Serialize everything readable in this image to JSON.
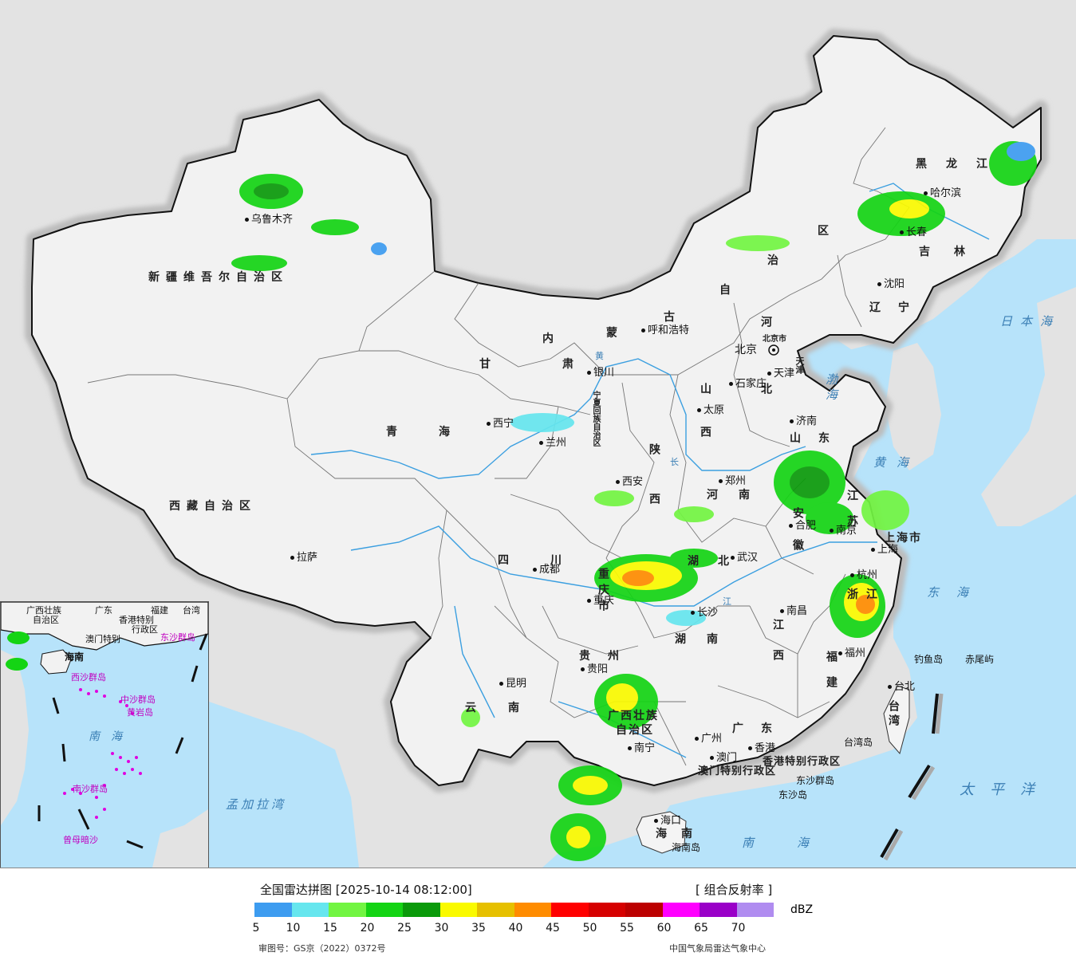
{
  "legend": {
    "title": "全国雷达拼图 [2025-10-14 08:12:00]",
    "product": "[ 组合反射率 ]",
    "unit": "dBZ",
    "colors": [
      "#3d9cf0",
      "#66e6ee",
      "#72f542",
      "#14d414",
      "#0a9a0a",
      "#fafa00",
      "#e6c000",
      "#ff8c00",
      "#ff0000",
      "#d60000",
      "#bc0000",
      "#ff00ff",
      "#9a00c8",
      "#b08cf0"
    ],
    "ticks": [
      "5",
      "10",
      "15",
      "20",
      "25",
      "30",
      "35",
      "40",
      "45",
      "50",
      "55",
      "60",
      "65",
      "70"
    ],
    "approval": "审图号：GS京（2022）0372号",
    "source": "中国气象局雷达气象中心"
  },
  "provinces": [
    {
      "id": "xinjiang",
      "label": "新疆维吾尔自治区"
    },
    {
      "id": "xizang",
      "label": "西藏自治区"
    },
    {
      "id": "qinghai",
      "label": "青海"
    },
    {
      "id": "gansu",
      "label": "甘肃"
    },
    {
      "id": "sichuan",
      "label": "四川"
    },
    {
      "id": "yunnan",
      "label": "云南"
    },
    {
      "id": "guizhou",
      "label": "贵州"
    },
    {
      "id": "guangxi1",
      "label": "广西壮族"
    },
    {
      "id": "guangxi2",
      "label": "自治区"
    },
    {
      "id": "guangdong",
      "label": "广东"
    },
    {
      "id": "hainan",
      "label": "海南"
    },
    {
      "id": "hunan",
      "label": "湖南"
    },
    {
      "id": "hubei",
      "label": "湖北"
    },
    {
      "id": "jiangxi",
      "label": "江西"
    },
    {
      "id": "fujian",
      "label": "福建"
    },
    {
      "id": "zhejiang",
      "label": "浙江"
    },
    {
      "id": "anhui",
      "label": "安徽"
    },
    {
      "id": "jiangsu",
      "label": "江苏"
    },
    {
      "id": "shandong",
      "label": "山东"
    },
    {
      "id": "henan",
      "label": "河南"
    },
    {
      "id": "shaanxi",
      "label": "陕西"
    },
    {
      "id": "shanxi",
      "label": "山西"
    },
    {
      "id": "hebei",
      "label": "河北"
    },
    {
      "id": "chongqing",
      "label": "重庆市"
    },
    {
      "id": "shanghai",
      "label": "上海市"
    },
    {
      "id": "liaoning",
      "label": "辽宁"
    },
    {
      "id": "jilin",
      "label": "吉林"
    },
    {
      "id": "heilongjiang",
      "label": "黑龙江"
    },
    {
      "id": "taiwan",
      "label": "台湾"
    },
    {
      "id": "hk",
      "label": "香港特别行政区"
    },
    {
      "id": "macau",
      "label": "澳门特别行政区"
    },
    {
      "id": "ningxia",
      "label": "宁夏回族自治区"
    },
    {
      "id": "tianjin",
      "label": "天津"
    },
    {
      "id": "beijing",
      "label": "北京市"
    }
  ],
  "nm": {
    "c1": "内",
    "c2": "蒙",
    "c3": "古",
    "c4": "自",
    "c5": "治",
    "c6": "区"
  },
  "cities": [
    {
      "id": "urumqi",
      "label": "乌鲁木齐"
    },
    {
      "id": "lhasa",
      "label": "拉萨"
    },
    {
      "id": "xining",
      "label": "西宁"
    },
    {
      "id": "lanzhou",
      "label": "兰州"
    },
    {
      "id": "yinchuan",
      "label": "银川"
    },
    {
      "id": "chengdu",
      "label": "成都"
    },
    {
      "id": "chongqingc",
      "label": "重庆"
    },
    {
      "id": "kunming",
      "label": "昆明"
    },
    {
      "id": "guiyang",
      "label": "贵阳"
    },
    {
      "id": "nanning",
      "label": "南宁"
    },
    {
      "id": "guangzhou",
      "label": "广州"
    },
    {
      "id": "haikou",
      "label": "海口"
    },
    {
      "id": "changsha",
      "label": "长沙"
    },
    {
      "id": "wuhan",
      "label": "武汉"
    },
    {
      "id": "nanchang",
      "label": "南昌"
    },
    {
      "id": "fuzhou",
      "label": "福州"
    },
    {
      "id": "hangzhou",
      "label": "杭州"
    },
    {
      "id": "hefei",
      "label": "合肥"
    },
    {
      "id": "nanjing",
      "label": "南京"
    },
    {
      "id": "shanghaic",
      "label": "上海"
    },
    {
      "id": "jinan",
      "label": "济南"
    },
    {
      "id": "zhengzhou",
      "label": "郑州"
    },
    {
      "id": "xian",
      "label": "西安"
    },
    {
      "id": "taiyuan",
      "label": "太原"
    },
    {
      "id": "shijiazhuang",
      "label": "石家庄"
    },
    {
      "id": "hohhot",
      "label": "呼和浩特"
    },
    {
      "id": "shenyang",
      "label": "沈阳"
    },
    {
      "id": "changchun",
      "label": "长春"
    },
    {
      "id": "harbin",
      "label": "哈尔滨"
    },
    {
      "id": "taibei",
      "label": "台北"
    },
    {
      "id": "xianggang",
      "label": "香港"
    },
    {
      "id": "aomen",
      "label": "澳门"
    },
    {
      "id": "tianjinc",
      "label": "天津"
    }
  ],
  "beijing": "北京",
  "seas": [
    {
      "id": "rbh",
      "label": "日本海"
    },
    {
      "id": "bh",
      "label": "渤海"
    },
    {
      "id": "hh",
      "label": "黄海"
    },
    {
      "id": "dh",
      "label": "东海"
    },
    {
      "id": "tpy",
      "label": "太平洋"
    },
    {
      "id": "nh",
      "label": "南海"
    },
    {
      "id": "mjlw",
      "label": "孟加拉湾"
    },
    {
      "id": "insetnh",
      "label": "南海"
    }
  ],
  "islands": [
    {
      "id": "dyd",
      "label": "钓鱼岛"
    },
    {
      "id": "cwy",
      "label": "赤尾屿"
    },
    {
      "id": "twd",
      "label": "台湾岛"
    },
    {
      "id": "dsqd",
      "label": "东沙群岛"
    },
    {
      "id": "dsd",
      "label": "东沙岛"
    },
    {
      "id": "hnd",
      "label": "海南岛"
    }
  ],
  "rivers": {
    "yr": "黄",
    "yz": "江",
    "yz2": "长"
  },
  "inset": {
    "labels": [
      {
        "id": "i_gx",
        "label": "广西壮族"
      },
      {
        "id": "i_gx2",
        "label": "自治区"
      },
      {
        "id": "i_gd",
        "label": "广东"
      },
      {
        "id": "i_fj",
        "label": "福建"
      },
      {
        "id": "i_tw",
        "label": "台湾"
      },
      {
        "id": "i_hk",
        "label": "香港特别"
      },
      {
        "id": "i_hk2",
        "label": "行政区"
      },
      {
        "id": "i_mo",
        "label": "澳门特别"
      },
      {
        "id": "i_dsqd",
        "label": "东沙群岛"
      },
      {
        "id": "i_hn",
        "label": "海南"
      },
      {
        "id": "i_xsqd",
        "label": "西沙群岛"
      },
      {
        "id": "i_zsqd",
        "label": "中沙群岛"
      },
      {
        "id": "i_hy",
        "label": "黄岩岛"
      },
      {
        "id": "i_nsqd",
        "label": "南沙群岛"
      },
      {
        "id": "i_zmans",
        "label": "曾母暗沙"
      }
    ]
  }
}
